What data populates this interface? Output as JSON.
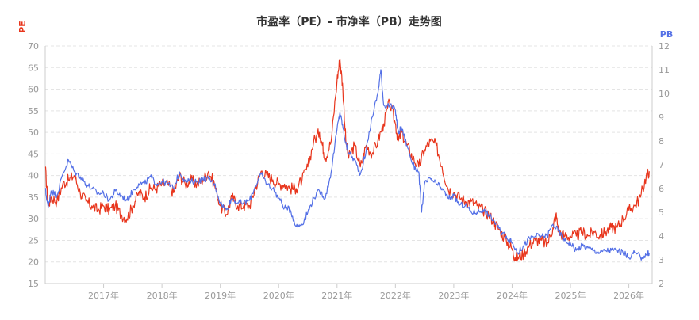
{
  "chart_data": {
    "type": "line",
    "title": "市盈率（PE）- 市净率（PB）走势图",
    "y_left_label": "PE",
    "y_right_label": "PB",
    "y_left_range": [
      15,
      70
    ],
    "y_left_ticks": [
      "15",
      "20",
      "25",
      "30",
      "35",
      "40",
      "45",
      "50",
      "55",
      "60",
      "65",
      "70"
    ],
    "y_right_range": [
      2,
      12
    ],
    "y_right_ticks": [
      "2",
      "3",
      "4",
      "5",
      "6",
      "7",
      "8",
      "9",
      "10",
      "11",
      "12"
    ],
    "x_range": [
      2016.0,
      2026.4
    ],
    "x_ticks": [
      {
        "value": 2017,
        "label": "2017年"
      },
      {
        "value": 2018,
        "label": "2018年"
      },
      {
        "value": 2019,
        "label": "2019年"
      },
      {
        "value": 2020,
        "label": "2020年"
      },
      {
        "value": 2021,
        "label": "2021年"
      },
      {
        "value": 2022,
        "label": "2022年"
      },
      {
        "value": 2023,
        "label": "2023年"
      },
      {
        "value": 2024,
        "label": "2024年"
      },
      {
        "value": 2025,
        "label": "2025年"
      },
      {
        "value": 2026,
        "label": "2026年"
      }
    ],
    "grid": "horizontal-dashed",
    "colors": {
      "pe": "#e8351c",
      "pb": "#5470e6",
      "grid": "#e4e4e4",
      "axis": "#cccccc"
    },
    "series": [
      {
        "axis": "left",
        "color": "#e8351c",
        "points": [
          [
            2016.0,
            42
          ],
          [
            2016.05,
            33
          ],
          [
            2016.1,
            35
          ],
          [
            2016.2,
            34
          ],
          [
            2016.3,
            38
          ],
          [
            2016.4,
            39
          ],
          [
            2016.5,
            40
          ],
          [
            2016.6,
            36
          ],
          [
            2016.7,
            34
          ],
          [
            2016.8,
            33
          ],
          [
            2016.9,
            32
          ],
          [
            2017.0,
            33
          ],
          [
            2017.1,
            32
          ],
          [
            2017.2,
            33
          ],
          [
            2017.3,
            31
          ],
          [
            2017.4,
            30
          ],
          [
            2017.5,
            33
          ],
          [
            2017.6,
            36
          ],
          [
            2017.7,
            35
          ],
          [
            2017.8,
            37
          ],
          [
            2017.9,
            37
          ],
          [
            2018.0,
            38
          ],
          [
            2018.1,
            38
          ],
          [
            2018.2,
            36
          ],
          [
            2018.3,
            40
          ],
          [
            2018.4,
            38
          ],
          [
            2018.5,
            39
          ],
          [
            2018.6,
            38
          ],
          [
            2018.7,
            39
          ],
          [
            2018.8,
            41
          ],
          [
            2018.9,
            38
          ],
          [
            2019.0,
            33
          ],
          [
            2019.1,
            31
          ],
          [
            2019.2,
            35
          ],
          [
            2019.3,
            33
          ],
          [
            2019.4,
            33
          ],
          [
            2019.5,
            33
          ],
          [
            2019.6,
            37
          ],
          [
            2019.7,
            41
          ],
          [
            2019.8,
            40
          ],
          [
            2019.9,
            39
          ],
          [
            2020.0,
            38
          ],
          [
            2020.1,
            38
          ],
          [
            2020.2,
            37
          ],
          [
            2020.3,
            37
          ],
          [
            2020.4,
            39
          ],
          [
            2020.5,
            42
          ],
          [
            2020.6,
            48
          ],
          [
            2020.7,
            50
          ],
          [
            2020.75,
            47
          ],
          [
            2020.8,
            44
          ],
          [
            2020.9,
            48
          ],
          [
            2021.0,
            62
          ],
          [
            2021.05,
            67
          ],
          [
            2021.1,
            60
          ],
          [
            2021.15,
            48
          ],
          [
            2021.2,
            44
          ],
          [
            2021.3,
            47
          ],
          [
            2021.4,
            42
          ],
          [
            2021.5,
            47
          ],
          [
            2021.6,
            45
          ],
          [
            2021.7,
            48
          ],
          [
            2021.8,
            52
          ],
          [
            2021.9,
            57
          ],
          [
            2022.0,
            52
          ],
          [
            2022.05,
            48
          ],
          [
            2022.1,
            50
          ],
          [
            2022.2,
            47
          ],
          [
            2022.3,
            44
          ],
          [
            2022.4,
            42
          ],
          [
            2022.5,
            46
          ],
          [
            2022.6,
            48
          ],
          [
            2022.7,
            47
          ],
          [
            2022.8,
            42
          ],
          [
            2022.9,
            37
          ],
          [
            2023.0,
            36
          ],
          [
            2023.1,
            35
          ],
          [
            2023.2,
            34
          ],
          [
            2023.3,
            34
          ],
          [
            2023.4,
            33
          ],
          [
            2023.5,
            32
          ],
          [
            2023.6,
            31
          ],
          [
            2023.7,
            29
          ],
          [
            2023.8,
            27
          ],
          [
            2023.9,
            25
          ],
          [
            2024.0,
            23
          ],
          [
            2024.05,
            21
          ],
          [
            2024.1,
            21
          ],
          [
            2024.2,
            22
          ],
          [
            2024.3,
            24
          ],
          [
            2024.4,
            25
          ],
          [
            2024.5,
            25
          ],
          [
            2024.6,
            24
          ],
          [
            2024.7,
            28
          ],
          [
            2024.75,
            31
          ],
          [
            2024.8,
            27
          ],
          [
            2024.9,
            26
          ],
          [
            2025.0,
            26
          ],
          [
            2025.1,
            26
          ],
          [
            2025.2,
            27
          ],
          [
            2025.3,
            26
          ],
          [
            2025.4,
            27
          ],
          [
            2025.5,
            26
          ],
          [
            2025.6,
            27
          ],
          [
            2025.7,
            28
          ],
          [
            2025.8,
            28
          ],
          [
            2025.9,
            30
          ],
          [
            2026.0,
            32
          ],
          [
            2026.1,
            33
          ],
          [
            2026.2,
            35
          ],
          [
            2026.3,
            40
          ],
          [
            2026.35,
            41
          ]
        ]
      },
      {
        "axis": "right",
        "color": "#5470e6",
        "points": [
          [
            2016.0,
            6.0
          ],
          [
            2016.05,
            5.2
          ],
          [
            2016.1,
            5.9
          ],
          [
            2016.2,
            5.7
          ],
          [
            2016.3,
            6.6
          ],
          [
            2016.4,
            7.2
          ],
          [
            2016.5,
            6.7
          ],
          [
            2016.6,
            6.5
          ],
          [
            2016.7,
            6.2
          ],
          [
            2016.8,
            6.0
          ],
          [
            2016.9,
            5.8
          ],
          [
            2017.0,
            5.8
          ],
          [
            2017.1,
            5.5
          ],
          [
            2017.2,
            5.9
          ],
          [
            2017.3,
            5.7
          ],
          [
            2017.4,
            5.5
          ],
          [
            2017.5,
            5.9
          ],
          [
            2017.6,
            6.2
          ],
          [
            2017.7,
            6.2
          ],
          [
            2017.8,
            6.5
          ],
          [
            2017.9,
            6.2
          ],
          [
            2018.0,
            6.3
          ],
          [
            2018.1,
            6.2
          ],
          [
            2018.2,
            6.0
          ],
          [
            2018.3,
            6.7
          ],
          [
            2018.4,
            6.3
          ],
          [
            2018.5,
            6.3
          ],
          [
            2018.6,
            6.3
          ],
          [
            2018.7,
            6.4
          ],
          [
            2018.8,
            6.4
          ],
          [
            2018.9,
            6.2
          ],
          [
            2019.0,
            5.4
          ],
          [
            2019.1,
            5.1
          ],
          [
            2019.2,
            5.6
          ],
          [
            2019.3,
            5.4
          ],
          [
            2019.4,
            5.4
          ],
          [
            2019.5,
            5.5
          ],
          [
            2019.6,
            6.1
          ],
          [
            2019.7,
            6.6
          ],
          [
            2019.8,
            6.2
          ],
          [
            2019.9,
            6.0
          ],
          [
            2020.0,
            5.6
          ],
          [
            2020.1,
            5.2
          ],
          [
            2020.2,
            5.1
          ],
          [
            2020.3,
            4.4
          ],
          [
            2020.4,
            4.5
          ],
          [
            2020.5,
            5.0
          ],
          [
            2020.6,
            5.6
          ],
          [
            2020.7,
            5.9
          ],
          [
            2020.8,
            5.6
          ],
          [
            2020.9,
            6.7
          ],
          [
            2021.0,
            8.5
          ],
          [
            2021.05,
            9.2
          ],
          [
            2021.1,
            8.6
          ],
          [
            2021.15,
            7.9
          ],
          [
            2021.2,
            7.5
          ],
          [
            2021.3,
            7.2
          ],
          [
            2021.4,
            6.6
          ],
          [
            2021.5,
            7.6
          ],
          [
            2021.6,
            9.0
          ],
          [
            2021.7,
            10.0
          ],
          [
            2021.75,
            11.0
          ],
          [
            2021.8,
            9.5
          ],
          [
            2021.9,
            9.5
          ],
          [
            2022.0,
            9.3
          ],
          [
            2022.05,
            8.3
          ],
          [
            2022.1,
            8.6
          ],
          [
            2022.2,
            7.8
          ],
          [
            2022.3,
            7.0
          ],
          [
            2022.4,
            6.7
          ],
          [
            2022.45,
            5.0
          ],
          [
            2022.5,
            6.2
          ],
          [
            2022.6,
            6.4
          ],
          [
            2022.7,
            6.2
          ],
          [
            2022.8,
            6.0
          ],
          [
            2022.9,
            5.6
          ],
          [
            2023.0,
            5.7
          ],
          [
            2023.1,
            5.3
          ],
          [
            2023.2,
            5.3
          ],
          [
            2023.3,
            5.0
          ],
          [
            2023.4,
            5.0
          ],
          [
            2023.5,
            5.1
          ],
          [
            2023.6,
            4.9
          ],
          [
            2023.7,
            4.6
          ],
          [
            2023.8,
            4.2
          ],
          [
            2023.9,
            4.0
          ],
          [
            2024.0,
            3.7
          ],
          [
            2024.1,
            3.3
          ],
          [
            2024.2,
            3.6
          ],
          [
            2024.3,
            3.9
          ],
          [
            2024.4,
            4.0
          ],
          [
            2024.5,
            4.0
          ],
          [
            2024.6,
            4.0
          ],
          [
            2024.7,
            4.5
          ],
          [
            2024.8,
            4.2
          ],
          [
            2024.9,
            3.8
          ],
          [
            2025.0,
            3.7
          ],
          [
            2025.1,
            3.4
          ],
          [
            2025.2,
            3.6
          ],
          [
            2025.3,
            3.5
          ],
          [
            2025.4,
            3.4
          ],
          [
            2025.5,
            3.3
          ],
          [
            2025.6,
            3.4
          ],
          [
            2025.7,
            3.4
          ],
          [
            2025.8,
            3.4
          ],
          [
            2025.9,
            3.3
          ],
          [
            2026.0,
            3.1
          ],
          [
            2026.1,
            3.3
          ],
          [
            2026.2,
            3.1
          ],
          [
            2026.3,
            3.2
          ],
          [
            2026.35,
            3.3
          ]
        ]
      }
    ]
  }
}
